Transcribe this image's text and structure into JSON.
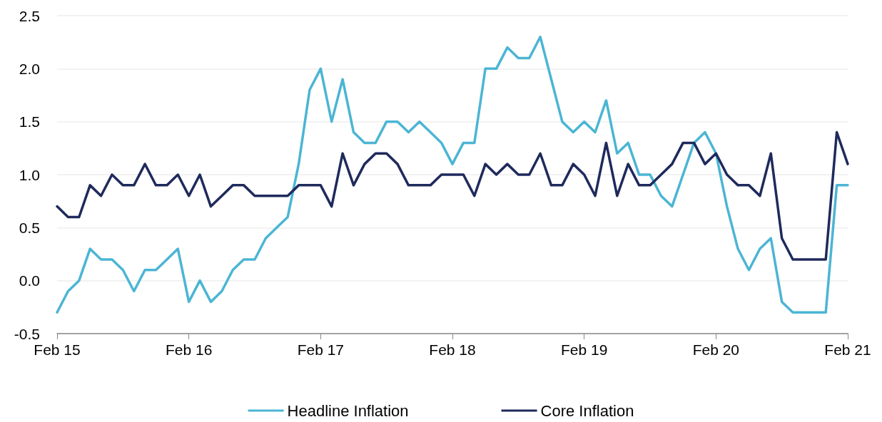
{
  "chart_data": {
    "type": "line",
    "categories": [
      "Feb 15",
      null,
      null,
      null,
      null,
      null,
      null,
      null,
      null,
      null,
      null,
      null,
      "Feb 16",
      null,
      null,
      null,
      null,
      null,
      null,
      null,
      null,
      null,
      null,
      null,
      "Feb 17",
      null,
      null,
      null,
      null,
      null,
      null,
      null,
      null,
      null,
      null,
      null,
      "Feb 18",
      null,
      null,
      null,
      null,
      null,
      null,
      null,
      null,
      null,
      null,
      null,
      "Feb 19",
      null,
      null,
      null,
      null,
      null,
      null,
      null,
      null,
      null,
      null,
      null,
      "Feb 20",
      null,
      null,
      null,
      null,
      null,
      null,
      null,
      null,
      null,
      null,
      null,
      "Feb 21"
    ],
    "series": [
      {
        "name": "Headline Inflation",
        "color": "#4bb5d4",
        "values": [
          -0.3,
          -0.1,
          0,
          0.3,
          0.2,
          0.2,
          0.1,
          -0.1,
          0.1,
          0.1,
          0.2,
          0.3,
          -0.2,
          0,
          -0.2,
          -0.1,
          0.1,
          0.2,
          0.2,
          0.4,
          0.5,
          0.6,
          1.1,
          1.8,
          2.0,
          1.5,
          1.9,
          1.4,
          1.3,
          1.3,
          1.5,
          1.5,
          1.4,
          1.5,
          1.4,
          1.3,
          1.1,
          1.3,
          1.3,
          2.0,
          2.0,
          2.2,
          2.1,
          2.1,
          2.3,
          1.9,
          1.5,
          1.4,
          1.5,
          1.4,
          1.7,
          1.2,
          1.3,
          1.0,
          1.0,
          0.8,
          0.7,
          1.0,
          1.3,
          1.4,
          1.2,
          0.7,
          0.3,
          0.1,
          0.3,
          0.4,
          -0.2,
          -0.3,
          -0.3,
          -0.3,
          -0.3,
          0.9,
          0.9
        ]
      },
      {
        "name": "Core Inflation",
        "color": "#1f2a5c",
        "values": [
          0.7,
          0.6,
          0.6,
          0.9,
          0.8,
          1.0,
          0.9,
          0.9,
          1.1,
          0.9,
          0.9,
          1.0,
          0.8,
          1.0,
          0.7,
          0.8,
          0.9,
          0.9,
          0.8,
          0.8,
          0.8,
          0.8,
          0.9,
          0.9,
          0.9,
          0.7,
          1.2,
          0.9,
          1.1,
          1.2,
          1.2,
          1.1,
          0.9,
          0.9,
          0.9,
          1.0,
          1.0,
          1.0,
          0.8,
          1.1,
          1.0,
          1.1,
          1.0,
          1.0,
          1.2,
          0.9,
          0.9,
          1.1,
          1.0,
          0.8,
          1.3,
          0.8,
          1.1,
          0.9,
          0.9,
          1.0,
          1.1,
          1.3,
          1.3,
          1.1,
          1.2,
          1.0,
          0.9,
          0.9,
          0.8,
          1.2,
          0.4,
          0.2,
          0.2,
          0.2,
          0.2,
          1.4,
          1.1
        ]
      }
    ],
    "ylim": [
      -0.5,
      2.5
    ],
    "yticks": [
      -0.5,
      {
        "value": 0,
        "label": "0.0"
      },
      0.5,
      {
        "value": 1,
        "label": "1.0"
      },
      1.5,
      {
        "value": 2,
        "label": "2.0"
      },
      2.5
    ],
    "grid": "y",
    "legend": "bottom",
    "marker": "none",
    "line_style": "solid"
  }
}
